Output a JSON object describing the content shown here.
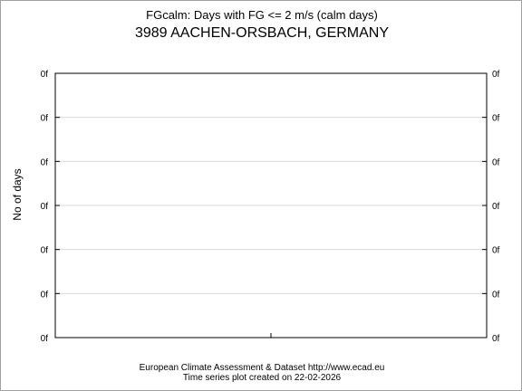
{
  "chart_data": {
    "type": "line",
    "title": "FGcalm: Days with FG <= 2 m/s (calm days)",
    "subtitle": "3989 AACHEN-ORSBACH, GERMANY",
    "xlabel": "",
    "ylabel": "No of days",
    "y_tick_labels": [
      "0f",
      "0f",
      "0f",
      "0f",
      "0f",
      "0f",
      "0f"
    ],
    "x_tick_count": 1,
    "grid": true,
    "series": []
  },
  "footer": {
    "line1": "European Climate Assessment & Dataset  http://www.ecad.eu",
    "line2": "Time series plot created on 22-02-2026"
  },
  "colors": {
    "axis": "#000000",
    "grid": "#d9d9d9",
    "frame": "#a0a0a0"
  }
}
